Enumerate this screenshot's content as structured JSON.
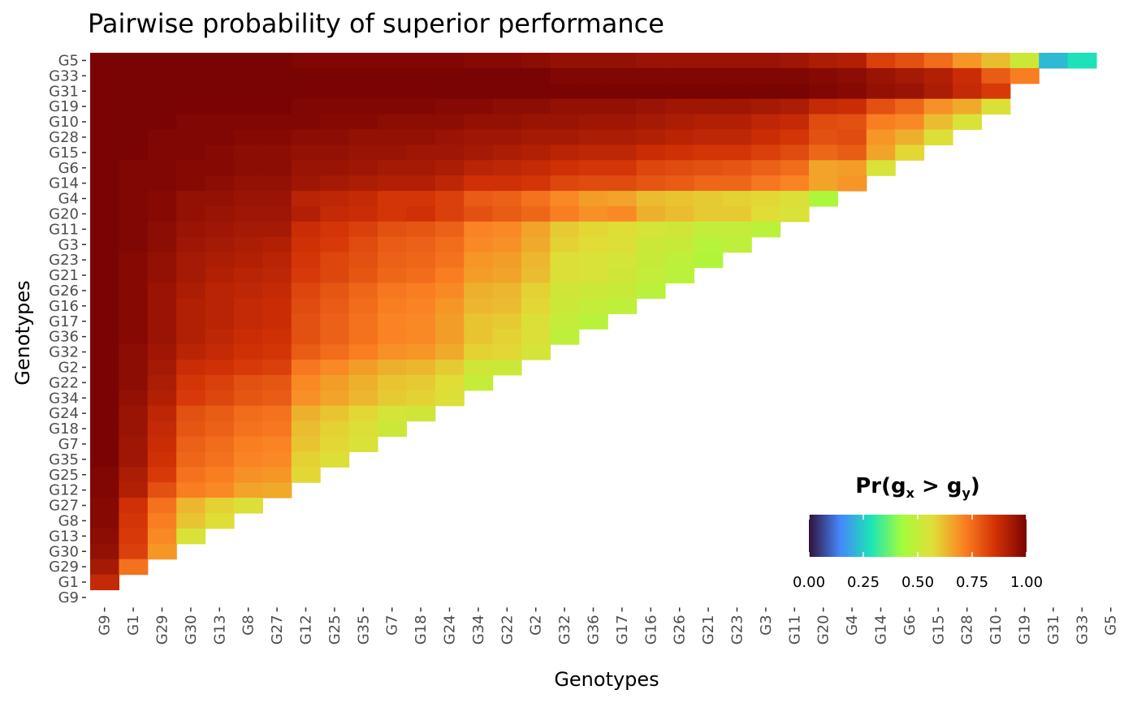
{
  "chart_data": {
    "type": "heatmap",
    "title": "Pairwise probability of superior performance",
    "xlabel": "Genotypes",
    "ylabel": "Genotypes",
    "x_categories": [
      "G9",
      "G1",
      "G29",
      "G30",
      "G13",
      "G8",
      "G27",
      "G12",
      "G25",
      "G35",
      "G7",
      "G18",
      "G24",
      "G34",
      "G22",
      "G2",
      "G32",
      "G36",
      "G17",
      "G16",
      "G26",
      "G21",
      "G23",
      "G3",
      "G11",
      "G20",
      "G4",
      "G14",
      "G6",
      "G15",
      "G28",
      "G10",
      "G19",
      "G31",
      "G33",
      "G5"
    ],
    "y_categories": [
      "G5",
      "G33",
      "G31",
      "G19",
      "G10",
      "G28",
      "G15",
      "G6",
      "G14",
      "G4",
      "G20",
      "G11",
      "G3",
      "G23",
      "G21",
      "G26",
      "G16",
      "G17",
      "G36",
      "G32",
      "G2",
      "G22",
      "G34",
      "G24",
      "G18",
      "G7",
      "G35",
      "G25",
      "G12",
      "G27",
      "G8",
      "G13",
      "G30",
      "G29",
      "G1",
      "G9"
    ],
    "values": [
      [
        1.0,
        1.0,
        1.0,
        1.0,
        1.0,
        1.0,
        1.0,
        0.99,
        0.99,
        0.99,
        0.99,
        0.99,
        0.99,
        0.98,
        0.98,
        0.97,
        0.96,
        0.96,
        0.96,
        0.95,
        0.95,
        0.95,
        0.95,
        0.95,
        0.94,
        0.92,
        0.91,
        0.83,
        0.8,
        0.75,
        0.68,
        0.62,
        0.52,
        0.22,
        0.28
      ],
      [
        1.0,
        1.0,
        1.0,
        1.0,
        1.0,
        1.0,
        1.0,
        1.0,
        1.0,
        1.0,
        1.0,
        1.0,
        1.0,
        1.0,
        1.0,
        1.0,
        0.99,
        0.99,
        0.99,
        0.99,
        0.99,
        0.99,
        0.99,
        0.99,
        0.99,
        0.98,
        0.97,
        0.95,
        0.93,
        0.91,
        0.87,
        0.78,
        0.72
      ],
      [
        1.0,
        1.0,
        1.0,
        1.0,
        1.0,
        1.0,
        1.0,
        1.0,
        1.0,
        1.0,
        1.0,
        1.0,
        1.0,
        1.0,
        1.0,
        1.0,
        1.0,
        1.0,
        1.0,
        1.0,
        1.0,
        1.0,
        1.0,
        1.0,
        1.0,
        0.99,
        0.98,
        0.96,
        0.95,
        0.92,
        0.88,
        0.84
      ],
      [
        1.0,
        1.0,
        1.0,
        1.0,
        1.0,
        1.0,
        1.0,
        0.99,
        0.99,
        0.99,
        0.99,
        0.99,
        0.98,
        0.98,
        0.97,
        0.97,
        0.96,
        0.96,
        0.96,
        0.95,
        0.94,
        0.94,
        0.94,
        0.93,
        0.92,
        0.88,
        0.87,
        0.8,
        0.76,
        0.69,
        0.65,
        0.56
      ],
      [
        1.0,
        1.0,
        1.0,
        0.99,
        0.99,
        0.99,
        0.99,
        0.99,
        0.98,
        0.98,
        0.97,
        0.97,
        0.97,
        0.96,
        0.96,
        0.95,
        0.95,
        0.94,
        0.94,
        0.93,
        0.92,
        0.91,
        0.91,
        0.89,
        0.88,
        0.81,
        0.8,
        0.72,
        0.7,
        0.62,
        0.55
      ],
      [
        1.0,
        1.0,
        0.99,
        0.99,
        0.99,
        0.98,
        0.98,
        0.97,
        0.97,
        0.96,
        0.96,
        0.96,
        0.95,
        0.94,
        0.94,
        0.93,
        0.93,
        0.92,
        0.92,
        0.91,
        0.9,
        0.89,
        0.89,
        0.87,
        0.85,
        0.8,
        0.81,
        0.68,
        0.64,
        0.56
      ],
      [
        1.0,
        1.0,
        0.99,
        0.99,
        0.98,
        0.97,
        0.97,
        0.96,
        0.96,
        0.95,
        0.95,
        0.94,
        0.94,
        0.93,
        0.92,
        0.91,
        0.9,
        0.89,
        0.89,
        0.87,
        0.86,
        0.85,
        0.85,
        0.83,
        0.81,
        0.76,
        0.78,
        0.66,
        0.58
      ],
      [
        1.0,
        0.99,
        0.99,
        0.98,
        0.98,
        0.97,
        0.97,
        0.95,
        0.95,
        0.94,
        0.93,
        0.93,
        0.92,
        0.9,
        0.89,
        0.88,
        0.86,
        0.85,
        0.85,
        0.82,
        0.81,
        0.8,
        0.79,
        0.77,
        0.75,
        0.66,
        0.67,
        0.55
      ],
      [
        1.0,
        0.99,
        0.99,
        0.98,
        0.97,
        0.96,
        0.96,
        0.94,
        0.93,
        0.92,
        0.91,
        0.91,
        0.89,
        0.86,
        0.86,
        0.85,
        0.82,
        0.81,
        0.81,
        0.79,
        0.78,
        0.76,
        0.76,
        0.73,
        0.71,
        0.66,
        0.68
      ],
      [
        1.0,
        0.99,
        0.98,
        0.96,
        0.96,
        0.95,
        0.95,
        0.9,
        0.89,
        0.88,
        0.85,
        0.85,
        0.83,
        0.78,
        0.77,
        0.74,
        0.7,
        0.67,
        0.66,
        0.62,
        0.61,
        0.6,
        0.59,
        0.58,
        0.56,
        0.45
      ],
      [
        1.0,
        0.99,
        0.98,
        0.96,
        0.95,
        0.94,
        0.94,
        0.91,
        0.88,
        0.87,
        0.85,
        0.86,
        0.83,
        0.8,
        0.78,
        0.76,
        0.72,
        0.69,
        0.7,
        0.64,
        0.62,
        0.6,
        0.6,
        0.57,
        0.55
      ],
      [
        1.0,
        0.99,
        0.97,
        0.95,
        0.94,
        0.93,
        0.93,
        0.87,
        0.85,
        0.83,
        0.8,
        0.79,
        0.77,
        0.71,
        0.7,
        0.66,
        0.6,
        0.58,
        0.57,
        0.54,
        0.53,
        0.5,
        0.5,
        0.48
      ],
      [
        1.0,
        0.99,
        0.97,
        0.94,
        0.93,
        0.92,
        0.91,
        0.86,
        0.84,
        0.81,
        0.78,
        0.77,
        0.75,
        0.7,
        0.69,
        0.65,
        0.59,
        0.57,
        0.56,
        0.52,
        0.51,
        0.47,
        0.49
      ],
      [
        1.0,
        0.98,
        0.96,
        0.93,
        0.92,
        0.91,
        0.9,
        0.85,
        0.82,
        0.8,
        0.77,
        0.76,
        0.74,
        0.68,
        0.67,
        0.63,
        0.56,
        0.55,
        0.54,
        0.51,
        0.49,
        0.46
      ],
      [
        1.0,
        0.98,
        0.96,
        0.93,
        0.91,
        0.9,
        0.89,
        0.84,
        0.82,
        0.79,
        0.76,
        0.75,
        0.72,
        0.67,
        0.66,
        0.62,
        0.56,
        0.55,
        0.53,
        0.5,
        0.48
      ],
      [
        1.0,
        0.98,
        0.95,
        0.92,
        0.9,
        0.89,
        0.88,
        0.82,
        0.79,
        0.76,
        0.73,
        0.72,
        0.7,
        0.64,
        0.63,
        0.59,
        0.53,
        0.52,
        0.51,
        0.48
      ],
      [
        1.0,
        0.98,
        0.95,
        0.91,
        0.9,
        0.88,
        0.87,
        0.81,
        0.78,
        0.75,
        0.72,
        0.71,
        0.68,
        0.63,
        0.62,
        0.58,
        0.52,
        0.5,
        0.49
      ],
      [
        1.0,
        0.98,
        0.95,
        0.91,
        0.9,
        0.88,
        0.87,
        0.8,
        0.77,
        0.74,
        0.71,
        0.7,
        0.67,
        0.61,
        0.6,
        0.56,
        0.5,
        0.48
      ],
      [
        1.0,
        0.98,
        0.95,
        0.91,
        0.89,
        0.87,
        0.86,
        0.8,
        0.77,
        0.74,
        0.71,
        0.7,
        0.67,
        0.61,
        0.59,
        0.56,
        0.49
      ],
      [
        1.0,
        0.97,
        0.94,
        0.9,
        0.88,
        0.86,
        0.85,
        0.78,
        0.75,
        0.72,
        0.69,
        0.68,
        0.65,
        0.59,
        0.58,
        0.54
      ],
      [
        1.0,
        0.97,
        0.93,
        0.87,
        0.86,
        0.84,
        0.83,
        0.73,
        0.7,
        0.67,
        0.64,
        0.63,
        0.6,
        0.53,
        0.52
      ],
      [
        1.0,
        0.97,
        0.92,
        0.85,
        0.83,
        0.8,
        0.79,
        0.7,
        0.67,
        0.64,
        0.61,
        0.6,
        0.57,
        0.5
      ],
      [
        1.0,
        0.96,
        0.91,
        0.84,
        0.82,
        0.79,
        0.78,
        0.69,
        0.66,
        0.63,
        0.6,
        0.59,
        0.56
      ],
      [
        1.0,
        0.95,
        0.89,
        0.8,
        0.78,
        0.75,
        0.74,
        0.64,
        0.61,
        0.58,
        0.54,
        0.53
      ],
      [
        1.0,
        0.95,
        0.88,
        0.79,
        0.77,
        0.74,
        0.73,
        0.62,
        0.59,
        0.56,
        0.52
      ],
      [
        1.0,
        0.94,
        0.87,
        0.77,
        0.75,
        0.72,
        0.71,
        0.61,
        0.58,
        0.55
      ],
      [
        1.0,
        0.94,
        0.86,
        0.76,
        0.74,
        0.71,
        0.7,
        0.59,
        0.56
      ],
      [
        0.99,
        0.92,
        0.84,
        0.74,
        0.72,
        0.69,
        0.68,
        0.58
      ],
      [
        0.99,
        0.91,
        0.8,
        0.72,
        0.7,
        0.66,
        0.65
      ],
      [
        0.98,
        0.86,
        0.74,
        0.63,
        0.59,
        0.56
      ],
      [
        0.98,
        0.85,
        0.72,
        0.61,
        0.57
      ],
      [
        0.97,
        0.84,
        0.7,
        0.55
      ],
      [
        0.96,
        0.83,
        0.68
      ],
      [
        0.93,
        0.74
      ],
      [
        0.88
      ],
      []
    ],
    "legend": {
      "title": "Pr(g",
      "sub_x": "x",
      "gt": " > g",
      "sub_y": "y",
      "close": ")",
      "ticks": [
        "0.00",
        "0.25",
        "0.50",
        "0.75",
        "1.00"
      ],
      "range": [
        0,
        1
      ],
      "colors": [
        "#30123b",
        "#4686fb",
        "#1be5b5",
        "#a4fc3c",
        "#e1dd37",
        "#fb8022",
        "#d23105",
        "#7a0403"
      ]
    }
  }
}
